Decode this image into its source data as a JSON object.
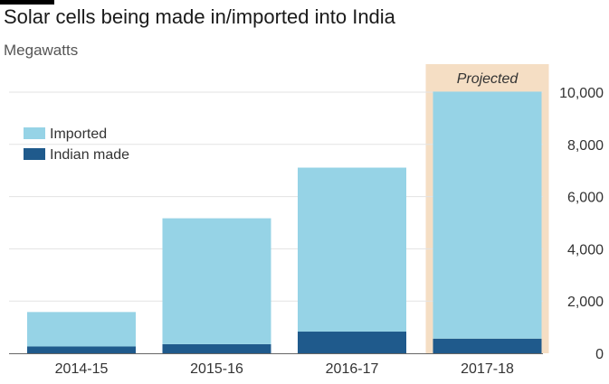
{
  "header": {
    "title": "Solar cells being made in/imported into India",
    "subtitle": "Megawatts"
  },
  "chart_data": {
    "type": "bar",
    "stacked": true,
    "categories": [
      "2014-15",
      "2015-16",
      "2016-17",
      "2017-18"
    ],
    "series": [
      {
        "name": "Indian made",
        "color": "#1f5a8c",
        "values": [
          260,
          350,
          830,
          560
        ]
      },
      {
        "name": "Imported",
        "color": "#96d3e6",
        "values": [
          1320,
          4820,
          6280,
          9460
        ]
      }
    ],
    "ylim": [
      0,
      10000
    ],
    "yticks": [
      0,
      2000,
      4000,
      6000,
      8000,
      10000
    ],
    "ytick_labels": [
      "0",
      "2,000",
      "4,000",
      "6,000",
      "8,000",
      "10,000"
    ],
    "y_axis_position": "right",
    "legend_order": [
      "Imported",
      "Indian made"
    ],
    "legend_position": "top-left",
    "highlight": {
      "category": "2017-18",
      "label": "Projected",
      "color": "#f5dec4"
    },
    "grid": true
  }
}
